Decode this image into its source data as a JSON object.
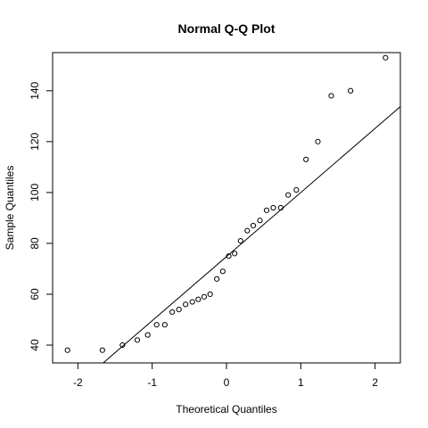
{
  "chart_data": {
    "type": "scatter",
    "title": "Normal Q-Q Plot",
    "xlabel": "Theoretical Quantiles",
    "ylabel": "Sample Quantiles",
    "xlim": [
      -2.34,
      2.34
    ],
    "ylim": [
      33,
      155
    ],
    "xticks": [
      -2,
      -1,
      0,
      1,
      2
    ],
    "xtick_labels": [
      "-2",
      "-1",
      "0",
      "1",
      "2"
    ],
    "yticks": [
      40,
      60,
      80,
      100,
      120,
      140
    ],
    "ytick_labels": [
      "40",
      "60",
      "80",
      "100",
      "120",
      "140"
    ],
    "grid": false,
    "marker": "open-circle",
    "points": [
      {
        "x": -2.14,
        "y": 38
      },
      {
        "x": -1.67,
        "y": 38
      },
      {
        "x": -1.4,
        "y": 40
      },
      {
        "x": -1.2,
        "y": 42
      },
      {
        "x": -1.06,
        "y": 44
      },
      {
        "x": -0.94,
        "y": 48
      },
      {
        "x": -0.83,
        "y": 48
      },
      {
        "x": -0.73,
        "y": 53
      },
      {
        "x": -0.64,
        "y": 54
      },
      {
        "x": -0.55,
        "y": 56
      },
      {
        "x": -0.46,
        "y": 57
      },
      {
        "x": -0.38,
        "y": 58
      },
      {
        "x": -0.3,
        "y": 59
      },
      {
        "x": -0.22,
        "y": 60
      },
      {
        "x": -0.13,
        "y": 66
      },
      {
        "x": -0.05,
        "y": 69
      },
      {
        "x": 0.03,
        "y": 75
      },
      {
        "x": 0.11,
        "y": 76
      },
      {
        "x": 0.19,
        "y": 81
      },
      {
        "x": 0.28,
        "y": 85
      },
      {
        "x": 0.36,
        "y": 87
      },
      {
        "x": 0.45,
        "y": 89
      },
      {
        "x": 0.54,
        "y": 93
      },
      {
        "x": 0.63,
        "y": 94
      },
      {
        "x": 0.73,
        "y": 94
      },
      {
        "x": 0.83,
        "y": 99
      },
      {
        "x": 0.94,
        "y": 101
      },
      {
        "x": 1.07,
        "y": 113
      },
      {
        "x": 1.23,
        "y": 120
      },
      {
        "x": 1.41,
        "y": 138
      },
      {
        "x": 1.67,
        "y": 140
      },
      {
        "x": 2.14,
        "y": 153
      }
    ],
    "reference_line": {
      "slope": 25.2,
      "intercept": 74.8
    }
  }
}
